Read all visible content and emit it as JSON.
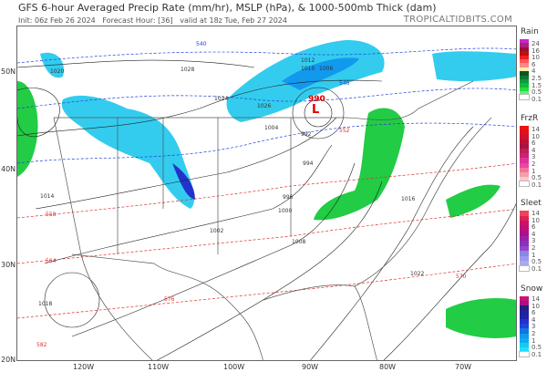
{
  "header": {
    "title": "GFS 6-hour Averaged Precip Rate (mm/hr), MSLP (hPa), & 1000-500mb Thick (dam)",
    "init": "Init: 06z Feb 26 2024",
    "forecast_hour": "Forecast Hour: [36]",
    "valid": "valid at 18z Tue, Feb 27 2024",
    "brand": "TROPICALTIDBITS.COM"
  },
  "map": {
    "lat_labels": [
      "50N",
      "40N",
      "30N",
      "20N"
    ],
    "lon_labels": [
      "120W",
      "110W",
      "100W",
      "90W",
      "80W",
      "70W"
    ],
    "low_center": {
      "pressure": "990",
      "symbol": "L"
    },
    "isobar_labels": [
      "1026",
      "1028",
      "1024",
      "1020",
      "1014",
      "1018",
      "1012",
      "1010",
      "1006",
      "1002",
      "1000",
      "996",
      "994",
      "992",
      "1004",
      "1008",
      "1016",
      "1022"
    ],
    "thickness_labels": [
      "552",
      "546",
      "540",
      "570",
      "576",
      "564",
      "558",
      "582"
    ],
    "colors": {
      "isobar": "#222222",
      "thickness_warm": "#e03030",
      "thickness_cold": "#2040e0",
      "rain": "#22cc44",
      "snow": "#33ccee",
      "border": "#555555"
    }
  },
  "legend": {
    "rain": {
      "title": "Rain",
      "labels": [
        "24",
        "16",
        "10",
        "6",
        "4",
        "2.5",
        "1.5",
        "0.5",
        "0.1"
      ],
      "colors": [
        "#cc22cc",
        "#aa2277",
        "#991133",
        "#bb1111",
        "#ee2222",
        "#ff5555",
        "#ff8888",
        "#ffeeaa",
        "#115522",
        "#117733",
        "#119944",
        "#11bb33",
        "#22dd44",
        "#66ee77",
        "#ffffff"
      ]
    },
    "frzr": {
      "title": "FrzR",
      "labels": [
        "14",
        "10",
        "6",
        "4",
        "3",
        "2",
        "1",
        "0.5",
        "0.1"
      ],
      "colors": [
        "#ee1111",
        "#dd1122",
        "#cc1133",
        "#bb1133",
        "#aa1144",
        "#bb2255",
        "#cc2277",
        "#dd3399",
        "#ee44aa",
        "#ee7799",
        "#f4a0a8",
        "#f8c8cc",
        "#ffffff"
      ]
    },
    "sleet": {
      "title": "Sleet",
      "labels": [
        "14",
        "10",
        "6",
        "4",
        "3",
        "2",
        "1",
        "0.5",
        "0.1"
      ],
      "colors": [
        "#ee4455",
        "#dd2255",
        "#cc1166",
        "#bb1177",
        "#aa1188",
        "#9922aa",
        "#8833bb",
        "#9944cc",
        "#8888dd",
        "#9999ee",
        "#aaaaee",
        "#ffffff"
      ]
    },
    "snow": {
      "title": "Snow",
      "labels": [
        "14",
        "10",
        "6",
        "4",
        "3",
        "2",
        "1",
        "0.5",
        "0.1"
      ],
      "colors": [
        "#cc1177",
        "#aa1188",
        "#222277",
        "#222299",
        "#2222aa",
        "#2233cc",
        "#2244dd",
        "#1177dd",
        "#1199ee",
        "#11aaee",
        "#11ccee",
        "#22ddff",
        "#ffffff"
      ]
    }
  }
}
